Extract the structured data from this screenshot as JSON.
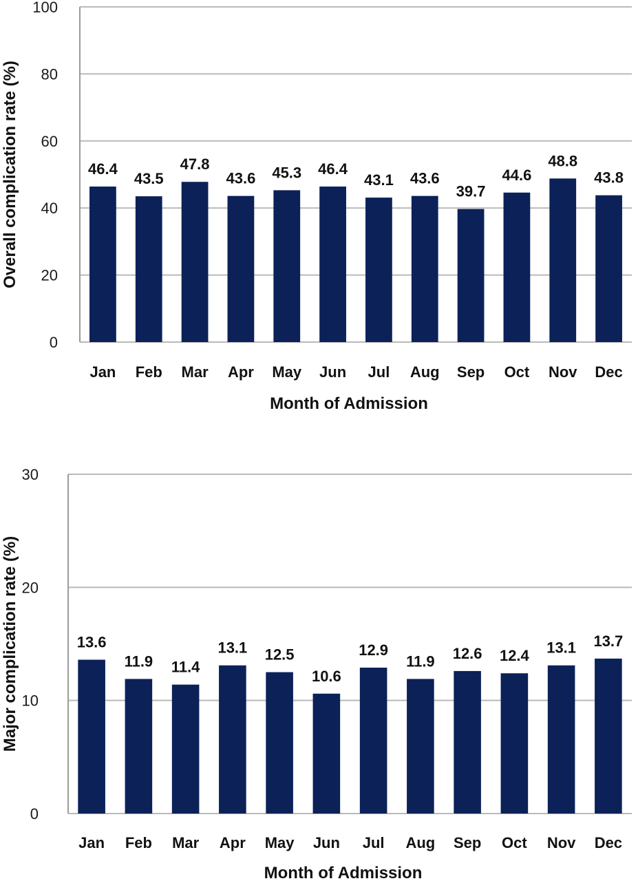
{
  "chart_data": [
    {
      "type": "bar",
      "xlabel": "Month of Admission",
      "ylabel": "Overall complication rate (%)",
      "categories": [
        "Jan",
        "Feb",
        "Mar",
        "Apr",
        "May",
        "Jun",
        "Jul",
        "Aug",
        "Sep",
        "Oct",
        "Nov",
        "Dec"
      ],
      "values": [
        46.4,
        43.5,
        47.8,
        43.6,
        45.3,
        46.4,
        43.1,
        43.6,
        39.7,
        44.6,
        48.8,
        43.8
      ],
      "ylim": [
        0,
        100
      ],
      "yticks": [
        0,
        20,
        40,
        60,
        80,
        100
      ],
      "grid": true,
      "bar_color": "#0b2158"
    },
    {
      "type": "bar",
      "xlabel": "Month of Admission",
      "ylabel": "Major complication rate (%)",
      "categories": [
        "Jan",
        "Feb",
        "Mar",
        "Apr",
        "May",
        "Jun",
        "Jul",
        "Aug",
        "Sep",
        "Oct",
        "Nov",
        "Dec"
      ],
      "values": [
        13.6,
        11.9,
        11.4,
        13.1,
        12.5,
        10.6,
        12.9,
        11.9,
        12.6,
        12.4,
        13.1,
        13.7
      ],
      "ylim": [
        0,
        30
      ],
      "yticks": [
        0,
        10,
        20,
        30
      ],
      "grid": true,
      "bar_color": "#0b2158"
    }
  ]
}
